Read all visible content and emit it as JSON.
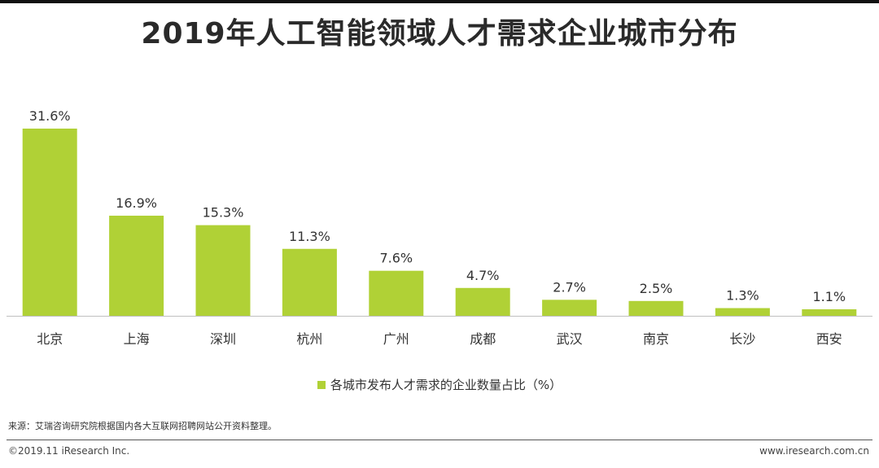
{
  "header": {
    "title": "2019年人工智能领域人才需求企业城市分布"
  },
  "chart_data": {
    "type": "bar",
    "title": "2019年人工智能领域人才需求企业城市分布",
    "categories": [
      "北京",
      "上海",
      "深圳",
      "杭州",
      "广州",
      "成都",
      "武汉",
      "南京",
      "长沙",
      "西安"
    ],
    "series": [
      {
        "name": "各城市发布人才需求的企业数量占比（%）",
        "values": [
          31.6,
          16.9,
          15.3,
          11.3,
          7.6,
          4.7,
          2.7,
          2.5,
          1.3,
          1.1
        ],
        "labels": [
          "31.6%",
          "16.9%",
          "15.3%",
          "11.3%",
          "7.6%",
          "4.7%",
          "2.7%",
          "2.5%",
          "1.3%",
          "1.1%"
        ]
      }
    ],
    "ylim": [
      0,
      31.6
    ],
    "grid": false,
    "legend_position": "bottom",
    "bar_color": "#b0d136"
  },
  "legend": {
    "label": "各城市发布人才需求的企业数量占比（%）"
  },
  "footer": {
    "source": "来源：艾瑞咨询研究院根据国内各大互联网招聘网站公开资料整理。",
    "copyright": "©2019.11 iResearch Inc.",
    "website": "www.iresearch.com.cn"
  }
}
